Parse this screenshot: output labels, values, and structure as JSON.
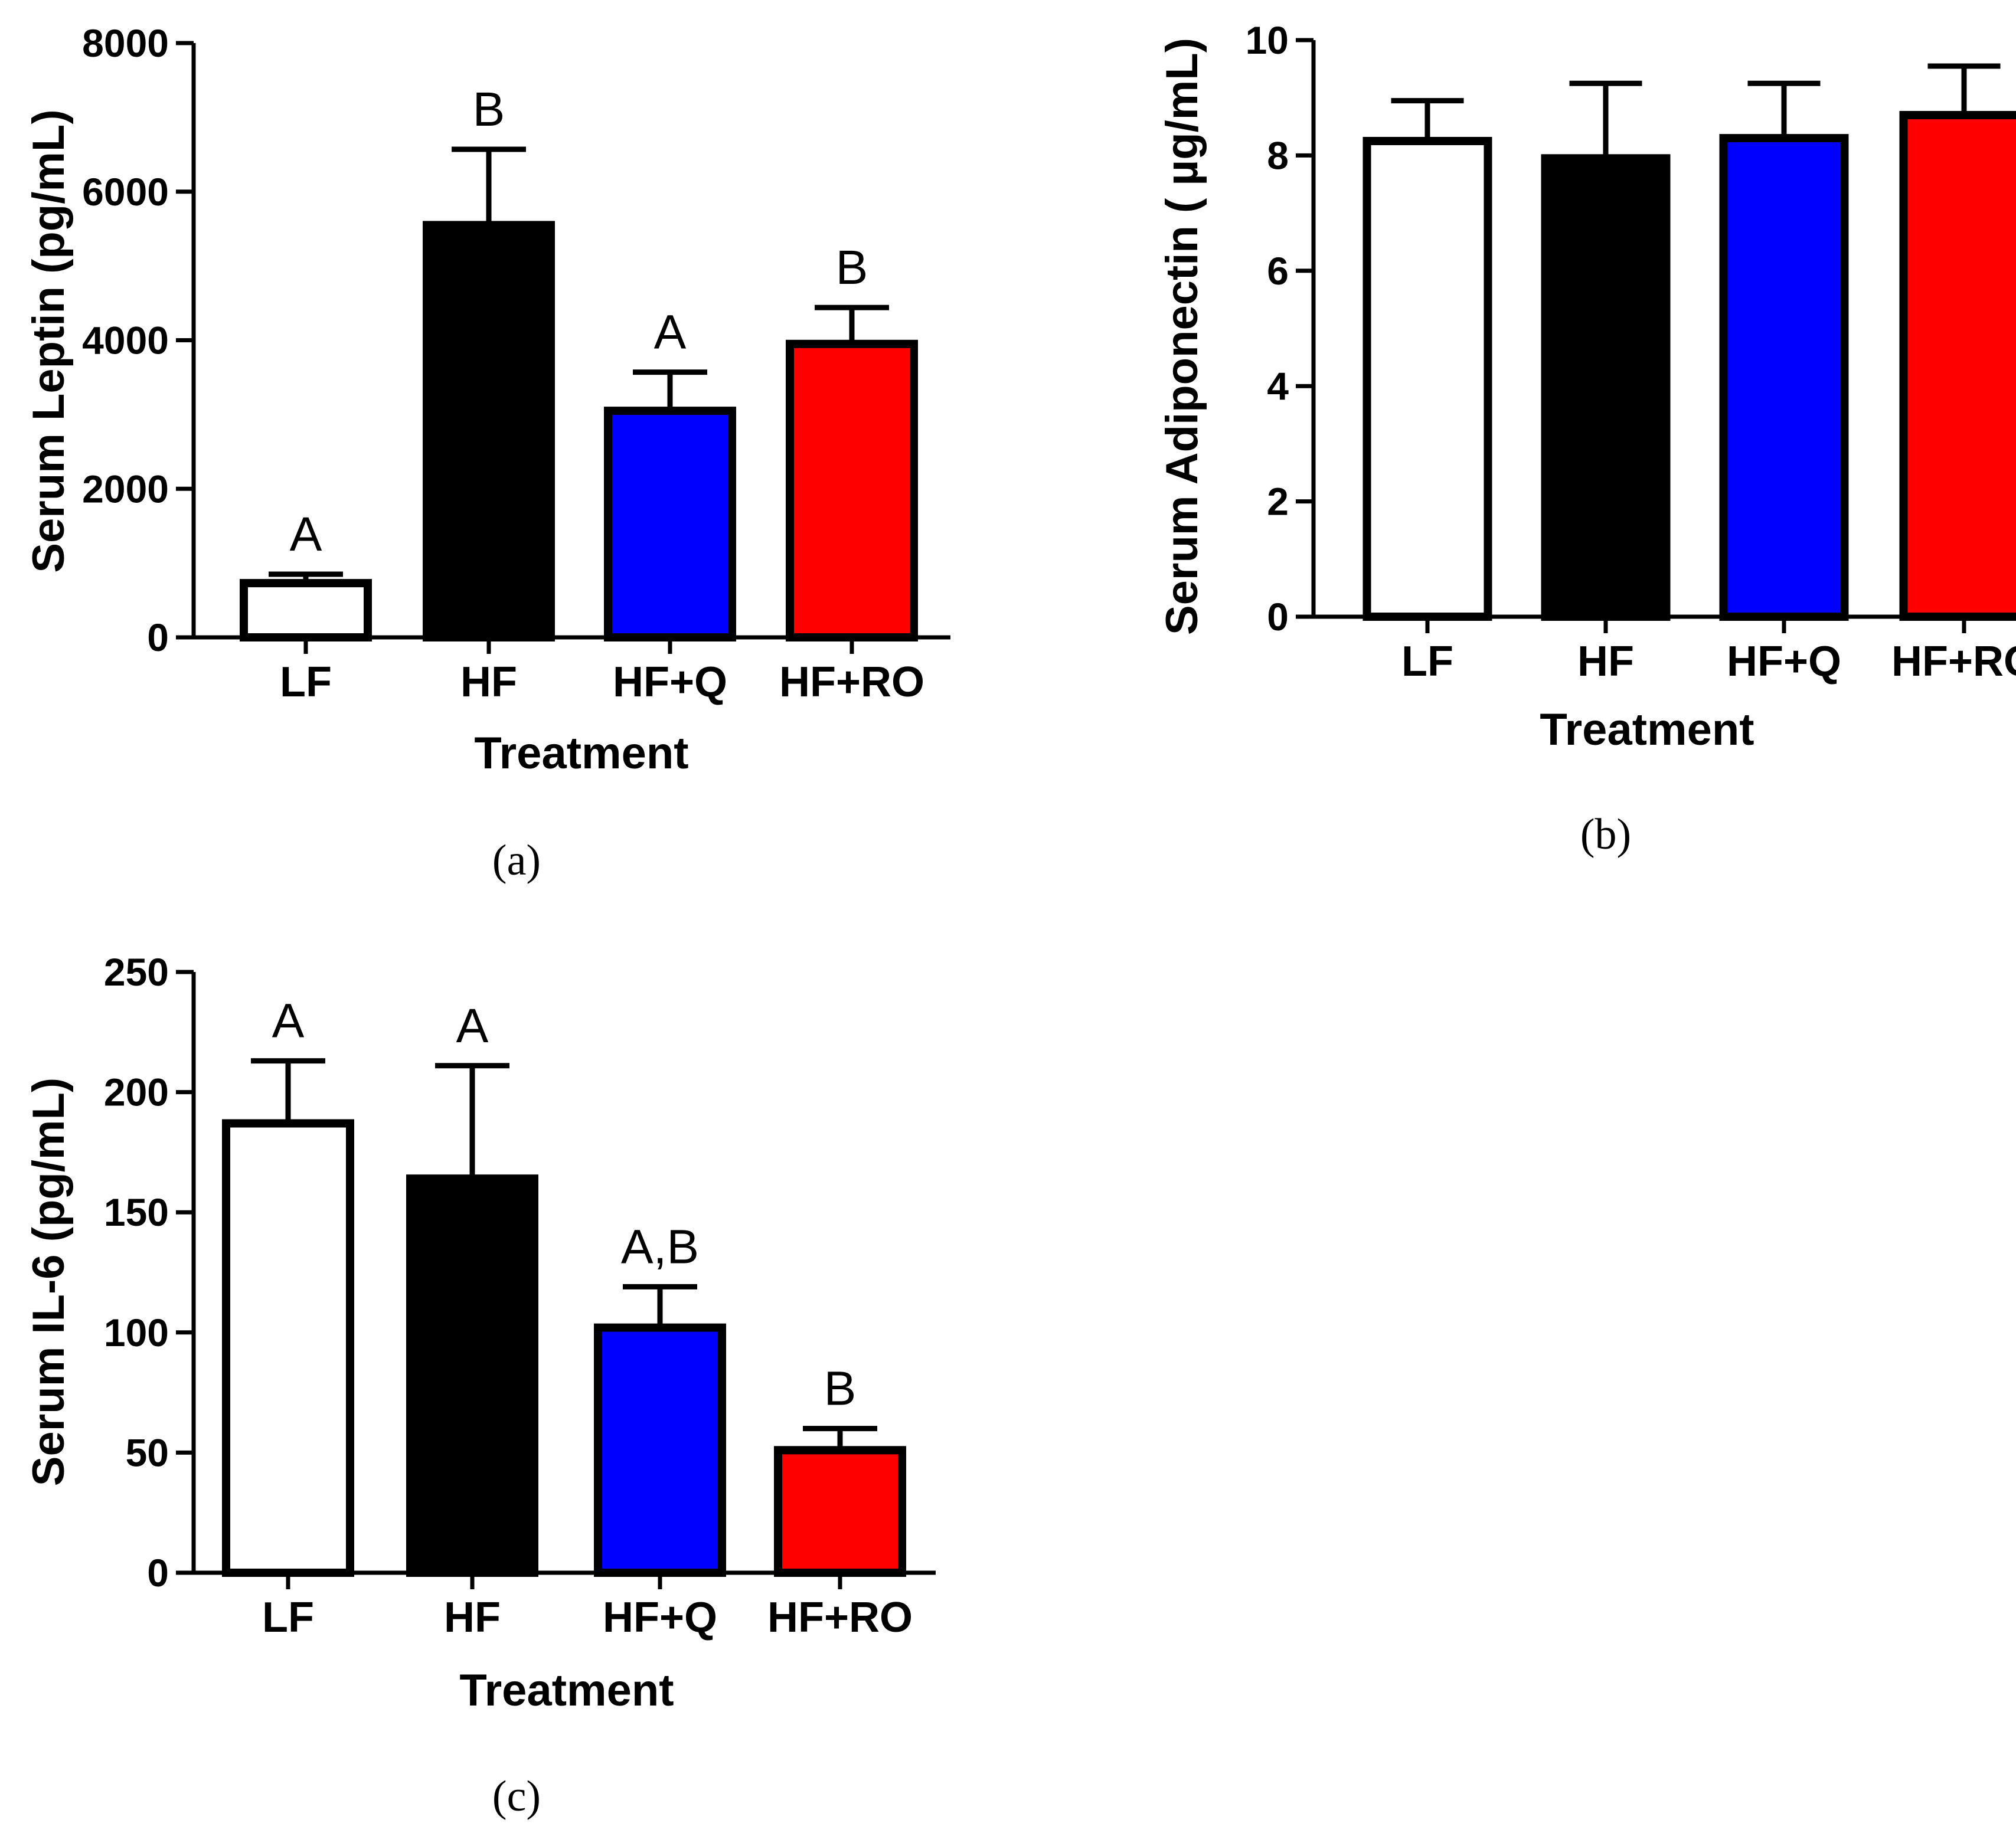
{
  "chart_data": [
    {
      "type": "bar",
      "panel": "(a)",
      "categories": [
        "LF",
        "HF",
        "HF+Q",
        "HF+RO"
      ],
      "values": [
        730,
        5550,
        3050,
        3950
      ],
      "errors": [
        120,
        1020,
        520,
        490
      ],
      "significance": [
        "A",
        "B",
        "A",
        "B"
      ],
      "colors": [
        "#ffffff",
        "#000000",
        "#0000ff",
        "#ff0000"
      ],
      "title": "",
      "xlabel": "Treatment",
      "ylabel": "Serum Leptin (pg/mL)",
      "ylim": [
        0,
        8000
      ],
      "yticks": [
        0,
        2000,
        4000,
        6000,
        8000
      ],
      "ytick_labels": [
        "0",
        "2000",
        "4000",
        "6000",
        "8000"
      ]
    },
    {
      "type": "bar",
      "panel": "(b)",
      "categories": [
        "LF",
        "HF",
        "HF+Q",
        "HF+RO"
      ],
      "values": [
        8.25,
        7.95,
        8.3,
        8.7
      ],
      "errors": [
        0.7,
        1.3,
        0.95,
        0.85
      ],
      "significance": [
        "",
        "",
        "",
        ""
      ],
      "colors": [
        "#ffffff",
        "#000000",
        "#0000ff",
        "#ff0000"
      ],
      "title": "",
      "xlabel": "Treatment",
      "ylabel": "Serum Adiponectin ( µg/mL)",
      "ylim": [
        0,
        10
      ],
      "yticks": [
        0,
        2,
        4,
        6,
        8,
        10
      ],
      "ytick_labels": [
        "0",
        "2",
        "4",
        "6",
        "8",
        "10"
      ]
    },
    {
      "type": "bar",
      "panel": "(c)",
      "categories": [
        "LF",
        "HF",
        "HF+Q",
        "HF+RO"
      ],
      "values": [
        187,
        164,
        102,
        51
      ],
      "errors": [
        26,
        47,
        17,
        9
      ],
      "significance": [
        "A",
        "A",
        "A,B",
        "B"
      ],
      "colors": [
        "#ffffff",
        "#000000",
        "#0000ff",
        "#ff0000"
      ],
      "title": "",
      "xlabel": "Treatment",
      "ylabel": "Serum IL-6 (pg/mL)",
      "ylim": [
        0,
        250
      ],
      "yticks": [
        0,
        50,
        100,
        150,
        200,
        250
      ],
      "ytick_labels": [
        "0",
        "50",
        "100",
        "150",
        "200",
        "250"
      ]
    }
  ]
}
